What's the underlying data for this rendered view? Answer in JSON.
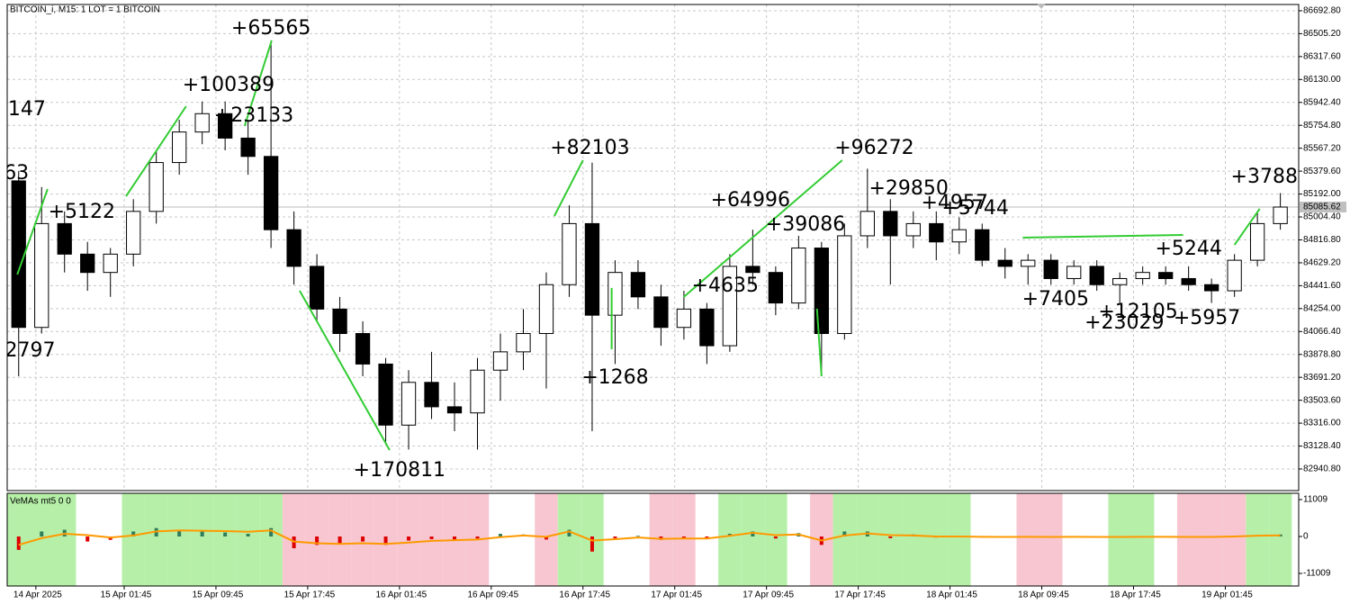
{
  "chart_data": {
    "type": "candlestick",
    "title": "BITCOIN_i, M15:  1 LOT = 1 BITCOIN",
    "open": [
      85300,
      84100,
      84950,
      84700,
      84550,
      84700,
      85050,
      85450,
      85700,
      85850,
      85650,
      85500,
      84900,
      84600,
      84250,
      84050,
      83800,
      83300,
      83650,
      83450,
      83400,
      83750,
      83900,
      84050,
      84450,
      84950,
      84200,
      84550,
      84350,
      84100,
      84250,
      83950,
      84600,
      84550,
      84300,
      84750,
      84050,
      84850,
      85050,
      84850,
      84950,
      84800,
      84900,
      84650,
      84600,
      84650,
      84500,
      84600,
      84450,
      84500,
      84550,
      84500,
      84450,
      84400,
      84650,
      84950
    ],
    "high": [
      85380,
      85250,
      85050,
      84800,
      84750,
      85150,
      85550,
      85800,
      85950,
      85950,
      85800,
      86450,
      85050,
      84700,
      84350,
      84150,
      83850,
      83750,
      83900,
      83650,
      83850,
      84050,
      84250,
      84550,
      85100,
      85450,
      84650,
      84650,
      84450,
      84400,
      84300,
      84700,
      84900,
      84600,
      84850,
      84800,
      84950,
      85400,
      85150,
      85050,
      85050,
      85000,
      84950,
      84750,
      84700,
      84700,
      84650,
      84650,
      84550,
      84600,
      84600,
      84600,
      84500,
      84700,
      85050,
      85200
    ],
    "low": [
      83700,
      84050,
      84550,
      84400,
      84350,
      84600,
      84950,
      85350,
      85600,
      85550,
      85350,
      84750,
      84450,
      84150,
      83900,
      83700,
      83150,
      83100,
      83350,
      83250,
      83100,
      83500,
      83750,
      83600,
      84350,
      83250,
      83800,
      84250,
      83950,
      84000,
      83800,
      83900,
      84450,
      84200,
      84250,
      83700,
      84000,
      84750,
      84450,
      84750,
      84650,
      84700,
      84600,
      84500,
      84450,
      84450,
      84450,
      84400,
      84300,
      84450,
      84450,
      84400,
      84300,
      84350,
      84600,
      84900
    ],
    "close": [
      84100,
      84950,
      84700,
      84550,
      84700,
      85050,
      85450,
      85700,
      85850,
      85650,
      85500,
      84900,
      84600,
      84250,
      84050,
      83800,
      83300,
      83650,
      83450,
      83400,
      83750,
      83900,
      84050,
      84450,
      84950,
      84200,
      84550,
      84350,
      84100,
      84250,
      83950,
      84600,
      84550,
      84300,
      84750,
      84050,
      84850,
      85050,
      84850,
      84950,
      84800,
      84900,
      84650,
      84600,
      84650,
      84500,
      84600,
      84450,
      84500,
      84550,
      84500,
      84450,
      84400,
      84650,
      84950,
      85085.62
    ],
    "current_price": 85085.62,
    "xlim": [
      -0.5,
      55.8
    ],
    "ylim": [
      82764,
      86744
    ],
    "yticks": [
      {
        "value": 86692.8,
        "label": "86692.80"
      },
      {
        "value": 86505.2,
        "label": "86505.20"
      },
      {
        "value": 86317.6,
        "label": "86317.60"
      },
      {
        "value": 86130,
        "label": "86130.00"
      },
      {
        "value": 85942.4,
        "label": "85942.40"
      },
      {
        "value": 85754.8,
        "label": "85754.80"
      },
      {
        "value": 85567.2,
        "label": "85567.20"
      },
      {
        "value": 85379.6,
        "label": "85379.60"
      },
      {
        "value": 85192,
        "label": "85192.00"
      },
      {
        "value": 85004.4,
        "label": "85004.40"
      },
      {
        "value": 84816.8,
        "label": "84816.80"
      },
      {
        "value": 84629.2,
        "label": "84629.20"
      },
      {
        "value": 84441.6,
        "label": "84441.60"
      },
      {
        "value": 84254,
        "label": "84254.00"
      },
      {
        "value": 84066.4,
        "label": "84066.40"
      },
      {
        "value": 83878.8,
        "label": "83878.80"
      },
      {
        "value": 83691.2,
        "label": "83691.20"
      },
      {
        "value": 83503.6,
        "label": "83503.60"
      },
      {
        "value": 83316,
        "label": "83316.00"
      },
      {
        "value": 83128.4,
        "label": "83128.40"
      },
      {
        "value": 82940.8,
        "label": "82940.80"
      }
    ],
    "xticks": [
      {
        "value": 0.75,
        "label": "14 Apr 2025"
      },
      {
        "value": 4.6,
        "label": "15 Apr 01:45"
      },
      {
        "value": 8.6,
        "label": "15 Apr 09:45"
      },
      {
        "value": 12.6,
        "label": "15 Apr 17:45"
      },
      {
        "value": 16.6,
        "label": "16 Apr 01:45"
      },
      {
        "value": 20.6,
        "label": "16 Apr 09:45"
      },
      {
        "value": 24.6,
        "label": "16 Apr 17:45"
      },
      {
        "value": 28.6,
        "label": "17 Apr 01:45"
      },
      {
        "value": 32.6,
        "label": "17 Apr 09:45"
      },
      {
        "value": 36.6,
        "label": "17 Apr 17:45"
      },
      {
        "value": 40.6,
        "label": "18 Apr 01:45"
      },
      {
        "value": 44.6,
        "label": "18 Apr 09:45"
      },
      {
        "value": 48.6,
        "label": "18 Apr 17:45"
      },
      {
        "value": 52.6,
        "label": "19 Apr 01:45"
      }
    ],
    "grid": true,
    "colors": {
      "up": "#ffffff",
      "down": "#000000",
      "annotation": "#33cc33"
    },
    "annotations": [
      {
        "text": "147",
        "x": 0.36,
        "y": 85882
      },
      {
        "text": "63",
        "x": -0.1,
        "y": 85359
      },
      {
        "text": "2797",
        "x": 0.5,
        "y": 83906
      },
      {
        "text": "+5122",
        "x": 2.75,
        "y": 85042
      },
      {
        "text": "+65565",
        "x": 11.0,
        "y": 86545
      },
      {
        "text": "+100389",
        "x": 9.15,
        "y": 86081
      },
      {
        "text": "+23133",
        "x": 10.25,
        "y": 85830
      },
      {
        "text": "+82103",
        "x": 24.9,
        "y": 85565
      },
      {
        "text": "+170811",
        "x": 16.6,
        "y": 82926
      },
      {
        "text": "+1268",
        "x": 26.0,
        "y": 83685
      },
      {
        "text": "+4635",
        "x": 30.8,
        "y": 84437
      },
      {
        "text": "+64996",
        "x": 31.9,
        "y": 85137
      },
      {
        "text": "+39086",
        "x": 34.3,
        "y": 84938
      },
      {
        "text": "+96272",
        "x": 37.3,
        "y": 85565
      },
      {
        "text": "+29850",
        "x": 38.8,
        "y": 85233
      },
      {
        "text": "+4957",
        "x": 40.8,
        "y": 85115
      },
      {
        "text": "+5744",
        "x": 41.7,
        "y": 85071
      },
      {
        "text": "+5244",
        "x": 51.0,
        "y": 84739
      },
      {
        "text": "+7405",
        "x": 45.2,
        "y": 84326
      },
      {
        "text": "+12105",
        "x": 48.8,
        "y": 84223
      },
      {
        "text": "+23029",
        "x": 48.2,
        "y": 84135
      },
      {
        "text": "+5957",
        "x": 51.8,
        "y": 84172
      },
      {
        "text": "+3788",
        "x": 54.3,
        "y": 85329
      }
    ],
    "trend_lines": [
      {
        "x": [
          -0.06,
          1.26
        ],
        "y": [
          84533,
          85233
        ]
      },
      {
        "x": [
          4.68,
          7.3
        ],
        "y": [
          85174,
          85911
        ]
      },
      {
        "x": [
          9.85,
          11.03
        ],
        "y": [
          85749,
          86450
        ]
      },
      {
        "x": [
          12.25,
          16.17
        ],
        "y": [
          84400,
          83096
        ]
      },
      {
        "x": [
          23.35,
          24.6
        ],
        "y": [
          85012,
          85469
        ]
      },
      {
        "x": [
          25.85,
          25.85
        ],
        "y": [
          83921,
          84423
        ]
      },
      {
        "x": [
          28.99,
          35.9
        ],
        "y": [
          84349,
          85469
        ]
      },
      {
        "x": [
          34.8,
          35.0
        ],
        "y": [
          84253,
          83700
        ]
      },
      {
        "x": [
          43.77,
          50.76
        ],
        "y": [
          84835,
          84857
        ]
      },
      {
        "x": [
          53.0,
          54.1
        ],
        "y": [
          84776,
          85071
        ]
      }
    ],
    "indicator": {
      "title": "VeMAs mt5 0 0",
      "values": [
        -4000,
        1500,
        2000,
        -1500,
        -1000,
        1500,
        2500,
        2000,
        1500,
        1200,
        800,
        2500,
        -3500,
        -2500,
        -2000,
        -1500,
        -2500,
        -1200,
        -800,
        -1000,
        -600,
        800,
        600,
        -900,
        2000,
        -4500,
        -500,
        200,
        -1000,
        -400,
        -700,
        800,
        1500,
        -600,
        1000,
        -2500,
        1500,
        1500,
        -500,
        600,
        -300,
        200,
        -300,
        -200,
        100,
        -200,
        150,
        -200,
        -150,
        100,
        -100,
        -150,
        -200,
        200,
        400,
        600
      ],
      "signal": [
        -2500,
        -500,
        800,
        400,
        -300,
        300,
        1500,
        1800,
        1700,
        1600,
        1400,
        1800,
        -1500,
        -2000,
        -2200,
        -2000,
        -2200,
        -1800,
        -1300,
        -1100,
        -900,
        -200,
        300,
        -100,
        1500,
        -1200,
        -800,
        -300,
        -700,
        -600,
        -600,
        200,
        1100,
        400,
        600,
        -1200,
        300,
        900,
        400,
        300,
        0,
        0,
        -100,
        -150,
        -100,
        -150,
        -100,
        -150,
        -150,
        -100,
        -100,
        -150,
        -150,
        0,
        250,
        350
      ],
      "background": [
        1,
        1,
        1,
        0,
        0,
        1,
        1,
        1,
        1,
        1,
        1,
        1,
        -1,
        -1,
        -1,
        -1,
        -1,
        -1,
        -1,
        -1,
        -1,
        0,
        0,
        -1,
        1,
        1,
        0,
        0,
        -1,
        -1,
        0,
        1,
        1,
        1,
        0,
        -1,
        1,
        1,
        1,
        1,
        1,
        1,
        0,
        0,
        -1,
        -1,
        0,
        0,
        1,
        1,
        0,
        -1,
        -1,
        -1,
        1,
        1
      ],
      "ylim": [
        -14768,
        12889
      ],
      "yticks": [
        11009,
        0,
        -11009
      ],
      "colors": {
        "positive": "#2e7d5b",
        "negative": "#dd0000",
        "signal": "#ff9900",
        "band_up": "#b6f0a8",
        "band_down": "#f7c6d0"
      }
    }
  }
}
